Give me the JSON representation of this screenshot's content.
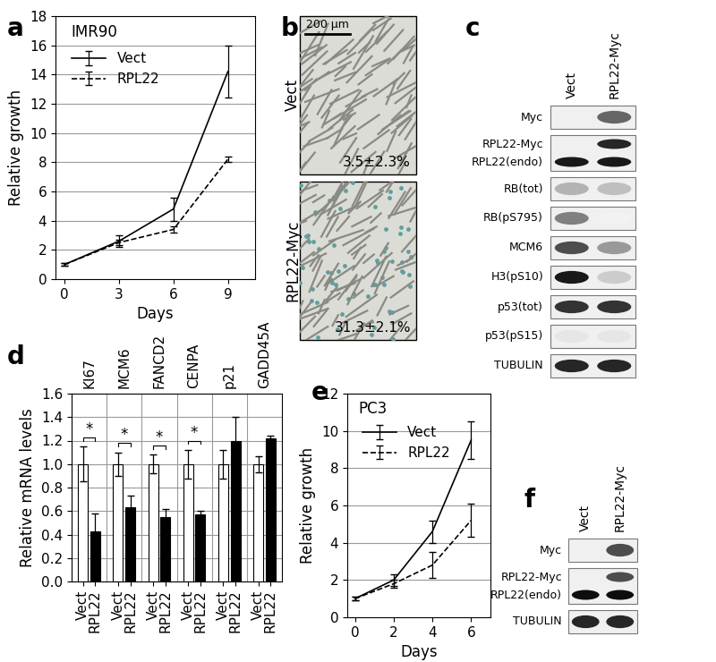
{
  "chart_data": [
    {
      "panel": "a",
      "type": "line",
      "title": "IMR90",
      "x_label": "Days",
      "y_label": "Relative growth",
      "x": [
        0,
        3,
        6,
        9
      ],
      "xlim": [
        -0.5,
        10.5
      ],
      "xticks": [
        0,
        3,
        6,
        9
      ],
      "ylim": [
        0,
        18
      ],
      "yticks": [
        0,
        2,
        4,
        6,
        8,
        10,
        12,
        14,
        16,
        18
      ],
      "grid": true,
      "legend": "upper left",
      "series": [
        {
          "name": "Vect",
          "color": "#000000",
          "line_style": "solid",
          "values": [
            1,
            2.6,
            4.8,
            14.2
          ],
          "errors": [
            0.1,
            0.4,
            0.8,
            1.8
          ]
        },
        {
          "name": "RPL22",
          "color": "#000000",
          "line_style": "dashed",
          "values": [
            1,
            2.5,
            3.4,
            8.2
          ],
          "errors": [
            0.1,
            0.2,
            0.2,
            0.2
          ]
        }
      ]
    },
    {
      "panel": "d",
      "type": "bar",
      "y_label": "Relative mRNA levels",
      "categories": [
        "KI67",
        "MCM6",
        "FANCD2",
        "CENPA",
        "p21",
        "GADD45A"
      ],
      "ylim": [
        0,
        1.6
      ],
      "yticks": [
        0.0,
        0.2,
        0.4,
        0.6,
        0.8,
        1.0,
        1.2,
        1.4,
        1.6
      ],
      "grid": true,
      "series": [
        {
          "name": "Vect",
          "color": "#ffffff",
          "values": [
            1.0,
            1.0,
            1.0,
            1.0,
            1.0,
            1.0
          ],
          "errors": [
            0.15,
            0.1,
            0.08,
            0.12,
            0.12,
            0.07
          ]
        },
        {
          "name": "RPL22",
          "color": "#000000",
          "values": [
            0.43,
            0.63,
            0.55,
            0.57,
            1.2,
            1.22
          ],
          "errors": [
            0.15,
            0.1,
            0.07,
            0.03,
            0.2,
            0.02
          ]
        }
      ],
      "significance": [
        "*",
        "*",
        "*",
        "*",
        null,
        null
      ]
    },
    {
      "panel": "e",
      "type": "line",
      "title": "PC3",
      "x_label": "Days",
      "y_label": "Relative growth",
      "x": [
        0,
        2,
        4,
        6
      ],
      "xlim": [
        -0.4,
        7
      ],
      "xticks": [
        0,
        2,
        4,
        6
      ],
      "ylim": [
        0,
        12
      ],
      "yticks": [
        0,
        2,
        4,
        6,
        8,
        10,
        12
      ],
      "grid": true,
      "legend": "upper left",
      "series": [
        {
          "name": "Vect",
          "color": "#000000",
          "line_style": "solid",
          "values": [
            1,
            2.0,
            4.6,
            9.5
          ],
          "errors": [
            0.1,
            0.3,
            0.6,
            1.0
          ]
        },
        {
          "name": "RPL22",
          "color": "#000000",
          "line_style": "dashed",
          "values": [
            1,
            1.8,
            2.8,
            5.2
          ],
          "errors": [
            0.1,
            0.2,
            0.7,
            0.9
          ]
        }
      ]
    }
  ],
  "panel_b": {
    "panel": "b",
    "scale_bar": "200 µm",
    "images": [
      {
        "label": "Vect",
        "value_text": "3.5±2.3%"
      },
      {
        "label": "RPL22-Myc",
        "value_text": "31.3±2.1%"
      }
    ]
  },
  "panel_c": {
    "panel": "c",
    "lanes": [
      "Vect",
      "RPL22-Myc"
    ],
    "rows": [
      {
        "labels": [
          "Myc"
        ],
        "bands": [
          [
            0,
            0.6
          ]
        ]
      },
      {
        "labels": [
          "RPL22-Myc",
          "RPL22(endo)"
        ],
        "bands": [
          [
            0,
            0.85
          ],
          [
            0.9,
            0.9
          ]
        ]
      },
      {
        "labels": [
          "RB(tot)"
        ],
        "bands": [
          [
            0.3,
            0.25
          ]
        ]
      },
      {
        "labels": [
          "RB(pS795)"
        ],
        "bands": [
          [
            0.5,
            0.05
          ]
        ]
      },
      {
        "labels": [
          "MCM6"
        ],
        "bands": [
          [
            0.7,
            0.4
          ]
        ]
      },
      {
        "labels": [
          "H3(pS10)"
        ],
        "bands": [
          [
            0.9,
            0.2
          ]
        ]
      },
      {
        "labels": [
          "p53(tot)"
        ],
        "bands": [
          [
            0.8,
            0.8
          ]
        ]
      },
      {
        "labels": [
          "p53(pS15)"
        ],
        "bands": [
          [
            0.1,
            0.1
          ]
        ]
      },
      {
        "labels": [
          "TUBULIN"
        ],
        "bands": [
          [
            0.85,
            0.85
          ]
        ]
      }
    ]
  },
  "panel_f": {
    "panel": "f",
    "lanes": [
      "Vect",
      "RPL22-Myc"
    ],
    "rows": [
      {
        "labels": [
          "Myc"
        ],
        "bands": [
          [
            0,
            0.7
          ]
        ]
      },
      {
        "labels": [
          "RPL22-Myc",
          "RPL22(endo)"
        ],
        "bands": [
          [
            0,
            0.7
          ],
          [
            0.95,
            0.95
          ]
        ]
      },
      {
        "labels": [
          "TUBULIN"
        ],
        "bands": [
          [
            0.85,
            0.85
          ]
        ]
      }
    ]
  }
}
